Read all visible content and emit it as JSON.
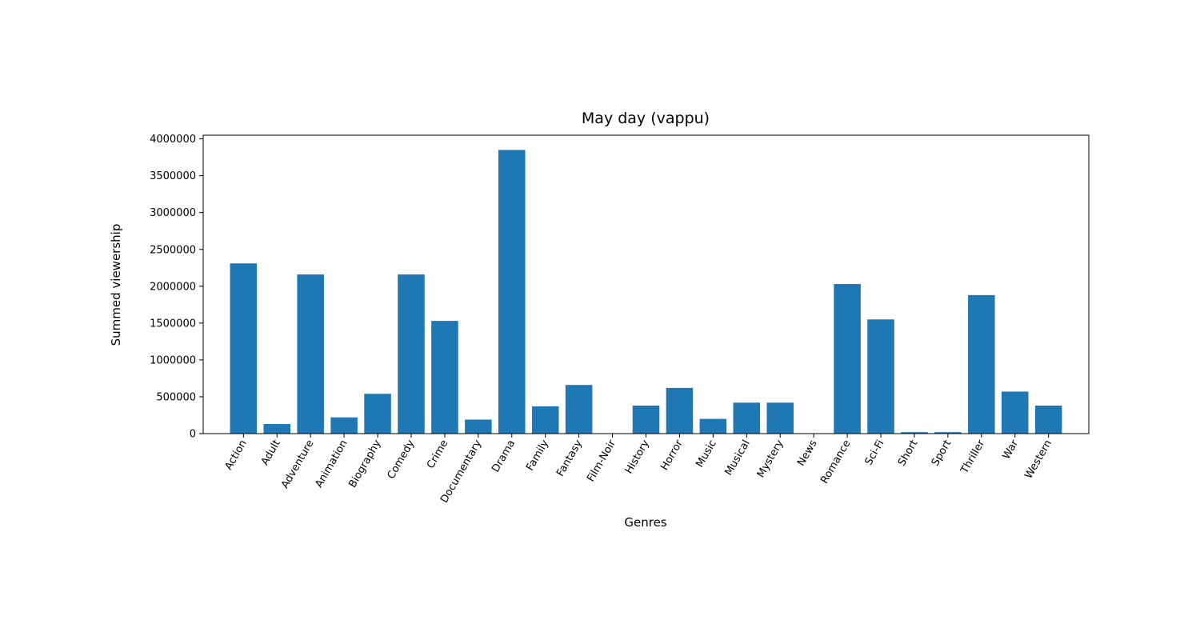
{
  "chart_data": {
    "type": "bar",
    "title": "May day (vappu)",
    "xlabel": "Genres",
    "ylabel": "Summed viewership",
    "color": "#1f77b4",
    "ylim": [
      0,
      4050000
    ],
    "yticks": [
      0,
      500000,
      1000000,
      1500000,
      2000000,
      2500000,
      3000000,
      3500000,
      4000000
    ],
    "ytick_labels": [
      "0",
      "500000",
      "1000000",
      "1500000",
      "2000000",
      "2500000",
      "3000000",
      "3500000",
      "4000000"
    ],
    "grid": false,
    "legend": false,
    "categories": [
      "Action",
      "Adult",
      "Adventure",
      "Animation",
      "Biography",
      "Comedy",
      "Crime",
      "Documentary",
      "Drama",
      "Family",
      "Fantasy",
      "Film-Noir",
      "History",
      "Horror",
      "Music",
      "Musical",
      "Mystery",
      "News",
      "Romance",
      "Sci-Fi",
      "Short",
      "Sport",
      "Thriller",
      "War",
      "Western"
    ],
    "values": [
      2310000,
      130000,
      2160000,
      220000,
      540000,
      2160000,
      1530000,
      190000,
      3850000,
      370000,
      660000,
      0,
      380000,
      620000,
      200000,
      420000,
      420000,
      0,
      2030000,
      1550000,
      20000,
      20000,
      1880000,
      570000,
      380000
    ]
  }
}
